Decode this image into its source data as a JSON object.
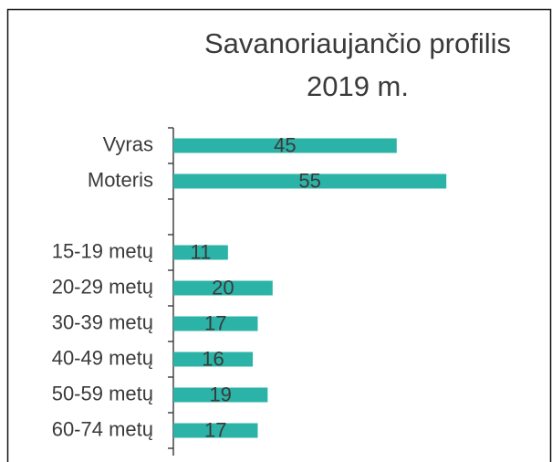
{
  "chart_data": {
    "type": "hbar",
    "title": [
      "Savanoriaujančio profilis",
      "2019 m."
    ],
    "categories": [
      "Vyras",
      "Moteris",
      null,
      "15-19 metų",
      "20-29 metų",
      "30-39 metų",
      "40-49 metų",
      "50-59 metų",
      "60-74 metų"
    ],
    "values": [
      45,
      55,
      null,
      11,
      20,
      17,
      16,
      19,
      17
    ],
    "color": "#2bb3a7",
    "xlim": [
      0,
      75
    ]
  }
}
